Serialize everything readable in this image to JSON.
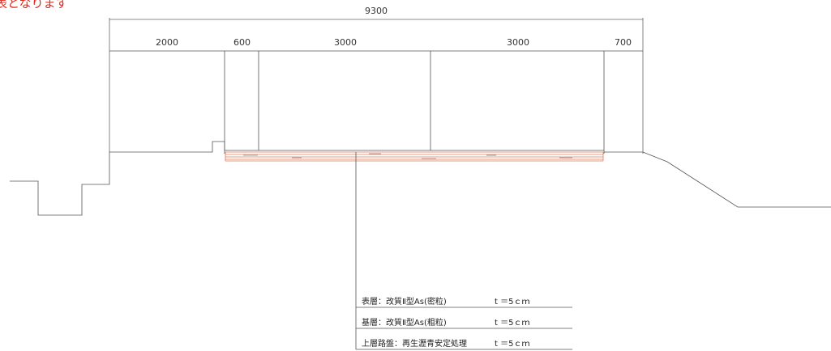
{
  "header": {
    "partial_text": "表となります"
  },
  "dimensions": {
    "total": "9300",
    "segments": [
      "2000",
      "600",
      "3000",
      "3000",
      "700"
    ]
  },
  "legend": {
    "layers": [
      {
        "label": "表層：改質Ⅱ型As(密粒)",
        "thickness": "t ＝5ｃｍ"
      },
      {
        "label": "基層：改質Ⅱ型As(粗粒)",
        "thickness": "t ＝5ｃｍ"
      },
      {
        "label": "上層路盤：再生瀝青安定処理",
        "thickness": "t ＝5ｃｍ"
      }
    ]
  },
  "colors": {
    "pavement": "#e07a5a",
    "heading": "#e02a1e",
    "line": "#555555"
  }
}
